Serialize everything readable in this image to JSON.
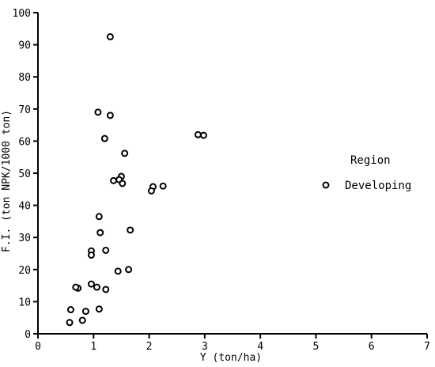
{
  "chart_data": {
    "type": "scatter",
    "title": "",
    "xlabel": "Y (ton/ha)",
    "ylabel": "F.I. (ton NPK/1000 ton)",
    "xlim": [
      0,
      7
    ],
    "ylim": [
      0,
      100
    ],
    "x_ticks": [
      "0",
      "1",
      "2",
      "3",
      "4",
      "5",
      "6",
      "7"
    ],
    "y_ticks": [
      "0",
      "10",
      "20",
      "30",
      "40",
      "50",
      "60",
      "70",
      "80",
      "90",
      "100"
    ],
    "grid": false,
    "legend": {
      "title": "Region",
      "placement": "right"
    },
    "series": [
      {
        "name": "Developing",
        "marker": "open-circle",
        "color": "#000000",
        "points": [
          [
            1.3,
            92.5
          ],
          [
            1.08,
            69.0
          ],
          [
            1.3,
            68.0
          ],
          [
            1.2,
            60.8
          ],
          [
            2.88,
            62.0
          ],
          [
            2.98,
            61.8
          ],
          [
            1.56,
            56.2
          ],
          [
            1.5,
            49.0
          ],
          [
            1.46,
            48.0
          ],
          [
            1.36,
            47.7
          ],
          [
            1.52,
            46.8
          ],
          [
            2.07,
            45.8
          ],
          [
            2.25,
            46.0
          ],
          [
            2.04,
            44.5
          ],
          [
            1.1,
            36.5
          ],
          [
            1.66,
            32.3
          ],
          [
            1.12,
            31.5
          ],
          [
            1.22,
            26.0
          ],
          [
            0.96,
            25.8
          ],
          [
            0.96,
            24.5
          ],
          [
            1.44,
            19.5
          ],
          [
            1.63,
            20.0
          ],
          [
            0.96,
            15.5
          ],
          [
            0.72,
            14.2
          ],
          [
            0.68,
            14.5
          ],
          [
            1.06,
            14.5
          ],
          [
            1.22,
            13.8
          ],
          [
            0.59,
            7.5
          ],
          [
            0.86,
            7.0
          ],
          [
            1.1,
            7.7
          ],
          [
            0.8,
            4.2
          ],
          [
            0.57,
            3.5
          ]
        ]
      }
    ]
  }
}
